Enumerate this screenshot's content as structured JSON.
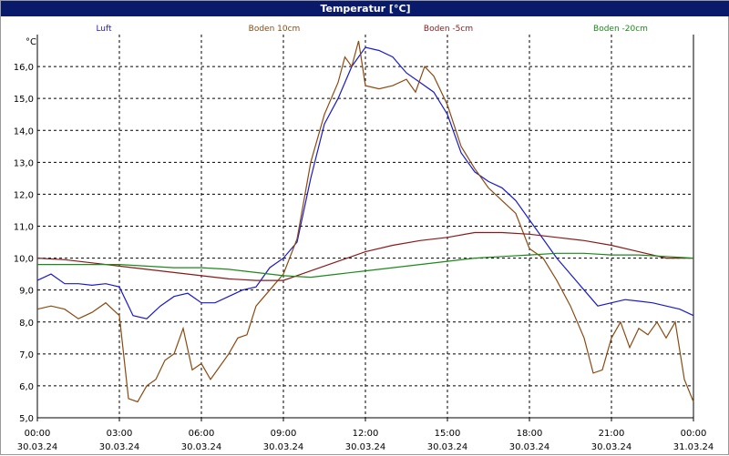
{
  "chart_data": {
    "type": "line",
    "title": "Temperatur [°C]",
    "ylabel": "°C",
    "ylim": [
      5.0,
      17.0
    ],
    "xlim": [
      "2024-03-30T00:00",
      "2024-03-31T00:00"
    ],
    "grid": true,
    "legend": "top",
    "y_ticks": [
      "5,0",
      "6,0",
      "7,0",
      "8,0",
      "9,0",
      "10,0",
      "11,0",
      "12,0",
      "13,0",
      "14,0",
      "15,0",
      "16,0"
    ],
    "x_ticks": [
      {
        "time": "00:00",
        "date": "30.03.24"
      },
      {
        "time": "03:00",
        "date": "30.03.24"
      },
      {
        "time": "06:00",
        "date": "30.03.24"
      },
      {
        "time": "09:00",
        "date": "30.03.24"
      },
      {
        "time": "12:00",
        "date": "30.03.24"
      },
      {
        "time": "15:00",
        "date": "30.03.24"
      },
      {
        "time": "18:00",
        "date": "30.03.24"
      },
      {
        "time": "21:00",
        "date": "30.03.24"
      },
      {
        "time": "00:00",
        "date": "31.03.24"
      }
    ],
    "series": [
      {
        "name": "Luft",
        "color": "#1a1acc",
        "points": [
          [
            "00:00",
            9.3
          ],
          [
            "00:30",
            9.5
          ],
          [
            "01:00",
            9.2
          ],
          [
            "01:30",
            9.2
          ],
          [
            "02:00",
            9.15
          ],
          [
            "02:30",
            9.2
          ],
          [
            "03:00",
            9.1
          ],
          [
            "03:30",
            8.2
          ],
          [
            "04:00",
            8.1
          ],
          [
            "04:30",
            8.5
          ],
          [
            "05:00",
            8.8
          ],
          [
            "05:30",
            8.9
          ],
          [
            "06:00",
            8.6
          ],
          [
            "06:30",
            8.6
          ],
          [
            "07:00",
            8.8
          ],
          [
            "07:30",
            9.0
          ],
          [
            "08:00",
            9.1
          ],
          [
            "08:30",
            9.7
          ],
          [
            "09:00",
            10.0
          ],
          [
            "09:30",
            10.5
          ],
          [
            "10:00",
            12.5
          ],
          [
            "10:30",
            14.2
          ],
          [
            "11:00",
            15.0
          ],
          [
            "11:30",
            16.0
          ],
          [
            "12:00",
            16.6
          ],
          [
            "12:30",
            16.5
          ],
          [
            "13:00",
            16.3
          ],
          [
            "13:30",
            15.8
          ],
          [
            "14:00",
            15.5
          ],
          [
            "14:30",
            15.2
          ],
          [
            "15:00",
            14.5
          ],
          [
            "15:30",
            13.3
          ],
          [
            "16:00",
            12.7
          ],
          [
            "16:30",
            12.4
          ],
          [
            "17:00",
            12.2
          ],
          [
            "17:30",
            11.8
          ],
          [
            "18:00",
            11.2
          ],
          [
            "18:30",
            10.6
          ],
          [
            "19:00",
            10.0
          ],
          [
            "19:30",
            9.5
          ],
          [
            "20:00",
            9.0
          ],
          [
            "20:30",
            8.5
          ],
          [
            "21:00",
            8.6
          ],
          [
            "21:30",
            8.7
          ],
          [
            "22:00",
            8.65
          ],
          [
            "22:30",
            8.6
          ],
          [
            "23:00",
            8.5
          ],
          [
            "23:30",
            8.4
          ],
          [
            "24:00",
            8.2
          ]
        ]
      },
      {
        "name": "Boden 10cm",
        "color": "#8a4a10",
        "points": [
          [
            "00:00",
            8.4
          ],
          [
            "00:30",
            8.5
          ],
          [
            "01:00",
            8.4
          ],
          [
            "01:30",
            8.1
          ],
          [
            "02:00",
            8.3
          ],
          [
            "02:30",
            8.6
          ],
          [
            "03:00",
            8.2
          ],
          [
            "03:20",
            5.6
          ],
          [
            "03:40",
            5.5
          ],
          [
            "04:00",
            6.0
          ],
          [
            "04:20",
            6.2
          ],
          [
            "04:40",
            6.8
          ],
          [
            "05:00",
            7.0
          ],
          [
            "05:20",
            7.8
          ],
          [
            "05:40",
            6.5
          ],
          [
            "06:00",
            6.7
          ],
          [
            "06:20",
            6.2
          ],
          [
            "06:40",
            6.6
          ],
          [
            "07:00",
            7.0
          ],
          [
            "07:20",
            7.5
          ],
          [
            "07:40",
            7.6
          ],
          [
            "08:00",
            8.5
          ],
          [
            "08:30",
            9.0
          ],
          [
            "09:00",
            9.5
          ],
          [
            "09:30",
            10.6
          ],
          [
            "10:00",
            13.0
          ],
          [
            "10:30",
            14.5
          ],
          [
            "11:00",
            15.5
          ],
          [
            "11:15",
            16.3
          ],
          [
            "11:30",
            16.0
          ],
          [
            "11:45",
            16.8
          ],
          [
            "12:00",
            15.4
          ],
          [
            "12:30",
            15.3
          ],
          [
            "13:00",
            15.4
          ],
          [
            "13:30",
            15.6
          ],
          [
            "13:50",
            15.2
          ],
          [
            "14:10",
            16.0
          ],
          [
            "14:30",
            15.7
          ],
          [
            "15:00",
            14.8
          ],
          [
            "15:30",
            13.5
          ],
          [
            "16:00",
            12.8
          ],
          [
            "16:30",
            12.2
          ],
          [
            "17:00",
            11.8
          ],
          [
            "17:30",
            11.4
          ],
          [
            "18:00",
            10.3
          ],
          [
            "18:30",
            10.0
          ],
          [
            "19:00",
            9.3
          ],
          [
            "19:30",
            8.5
          ],
          [
            "20:00",
            7.5
          ],
          [
            "20:20",
            6.4
          ],
          [
            "20:40",
            6.5
          ],
          [
            "21:00",
            7.5
          ],
          [
            "21:20",
            8.0
          ],
          [
            "21:40",
            7.2
          ],
          [
            "22:00",
            7.8
          ],
          [
            "22:20",
            7.6
          ],
          [
            "22:40",
            8.0
          ],
          [
            "23:00",
            7.5
          ],
          [
            "23:20",
            8.0
          ],
          [
            "23:40",
            6.2
          ],
          [
            "24:00",
            5.5
          ]
        ]
      },
      {
        "name": "Boden -5cm",
        "color": "#8a1a1a",
        "points": [
          [
            "00:00",
            10.0
          ],
          [
            "01:00",
            9.95
          ],
          [
            "02:00",
            9.85
          ],
          [
            "03:00",
            9.75
          ],
          [
            "04:00",
            9.65
          ],
          [
            "05:00",
            9.55
          ],
          [
            "06:00",
            9.45
          ],
          [
            "07:00",
            9.35
          ],
          [
            "08:00",
            9.3
          ],
          [
            "09:00",
            9.3
          ],
          [
            "10:00",
            9.6
          ],
          [
            "11:00",
            9.9
          ],
          [
            "12:00",
            10.2
          ],
          [
            "13:00",
            10.4
          ],
          [
            "14:00",
            10.55
          ],
          [
            "15:00",
            10.65
          ],
          [
            "16:00",
            10.8
          ],
          [
            "17:00",
            10.8
          ],
          [
            "18:00",
            10.75
          ],
          [
            "19:00",
            10.65
          ],
          [
            "20:00",
            10.55
          ],
          [
            "21:00",
            10.4
          ],
          [
            "22:00",
            10.2
          ],
          [
            "23:00",
            10.0
          ],
          [
            "24:00",
            10.0
          ]
        ]
      },
      {
        "name": "Boden -20cm",
        "color": "#1a8a1a",
        "points": [
          [
            "00:00",
            9.8
          ],
          [
            "01:00",
            9.8
          ],
          [
            "02:00",
            9.8
          ],
          [
            "03:00",
            9.8
          ],
          [
            "04:00",
            9.75
          ],
          [
            "05:00",
            9.7
          ],
          [
            "06:00",
            9.7
          ],
          [
            "07:00",
            9.65
          ],
          [
            "08:00",
            9.55
          ],
          [
            "09:00",
            9.45
          ],
          [
            "10:00",
            9.4
          ],
          [
            "11:00",
            9.5
          ],
          [
            "12:00",
            9.6
          ],
          [
            "13:00",
            9.7
          ],
          [
            "14:00",
            9.8
          ],
          [
            "15:00",
            9.9
          ],
          [
            "16:00",
            10.0
          ],
          [
            "17:00",
            10.05
          ],
          [
            "18:00",
            10.1
          ],
          [
            "19:00",
            10.15
          ],
          [
            "20:00",
            10.15
          ],
          [
            "21:00",
            10.1
          ],
          [
            "22:00",
            10.1
          ],
          [
            "23:00",
            10.05
          ],
          [
            "24:00",
            10.0
          ]
        ]
      }
    ]
  }
}
